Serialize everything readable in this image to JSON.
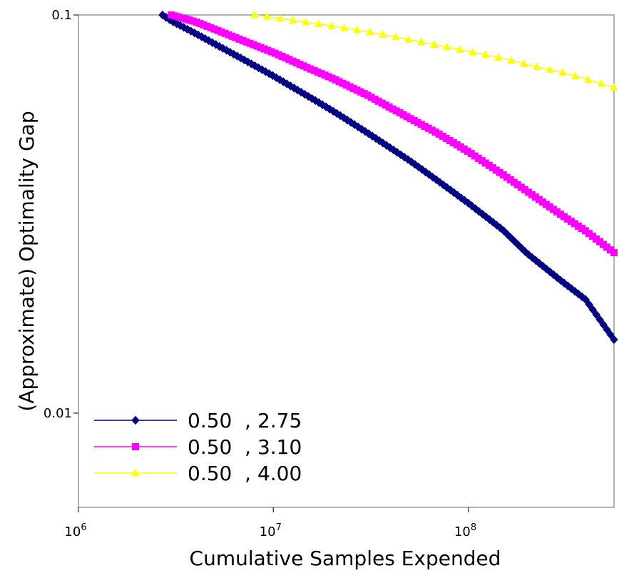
{
  "chart_data": {
    "type": "line",
    "title": "",
    "xlabel": "Cumulative Samples Expended",
    "ylabel": "(Approximate) Optimality Gap",
    "xscale": "log",
    "yscale": "log",
    "xlim": [
      1000000,
      560000000
    ],
    "ylim": [
      0.0058,
      0.1
    ],
    "grid": false,
    "legend_position": "bottom-left",
    "x_ticks": [
      {
        "value": 1000000,
        "base": "10",
        "exp": "6"
      },
      {
        "value": 10000000,
        "base": "10",
        "exp": "7"
      },
      {
        "value": 100000000,
        "base": "10",
        "exp": "8"
      }
    ],
    "y_ticks": [
      {
        "value": 0.1,
        "label": "0.1"
      },
      {
        "value": 0.01,
        "label": "0.01"
      }
    ],
    "series": [
      {
        "name": "0.50  , 2.75",
        "color": "#000080",
        "line_color": "#000080",
        "marker": "diamond",
        "x": [
          2700000,
          3000000,
          4000000,
          5000000,
          7000000,
          10000000,
          15000000,
          20000000,
          30000000,
          50000000,
          70000000,
          100000000,
          150000000,
          200000000,
          300000000,
          400000000,
          560000000
        ],
        "y": [
          0.1,
          0.0966,
          0.0898,
          0.0846,
          0.0774,
          0.0703,
          0.0626,
          0.0576,
          0.0508,
          0.0431,
          0.0383,
          0.0337,
          0.0289,
          0.0252,
          0.0215,
          0.0193,
          0.0153
        ]
      },
      {
        "name": "0.50  , 3.10",
        "color": "#ff00ff",
        "line_color": "#ff00ff",
        "marker": "square",
        "x": [
          3000000,
          4000000,
          5000000,
          7000000,
          10000000,
          15000000,
          20000000,
          30000000,
          50000000,
          70000000,
          100000000,
          150000000,
          200000000,
          300000000,
          400000000,
          560000000
        ],
        "y": [
          0.1,
          0.0961,
          0.0921,
          0.0862,
          0.0805,
          0.0737,
          0.0694,
          0.0631,
          0.0551,
          0.0504,
          0.0454,
          0.0398,
          0.0361,
          0.0315,
          0.0287,
          0.0253
        ]
      },
      {
        "name": "0.50  , 4.00",
        "color": "#ffff00",
        "line_color": "#ffff00",
        "marker": "triangle",
        "x": [
          8000000,
          10000000,
          15000000,
          20000000,
          30000000,
          50000000,
          70000000,
          100000000,
          150000000,
          200000000,
          300000000,
          400000000,
          560000000
        ],
        "y": [
          0.1,
          0.0986,
          0.0958,
          0.0938,
          0.0909,
          0.0867,
          0.0839,
          0.0811,
          0.0778,
          0.0751,
          0.0718,
          0.0691,
          0.0658
        ]
      }
    ]
  }
}
